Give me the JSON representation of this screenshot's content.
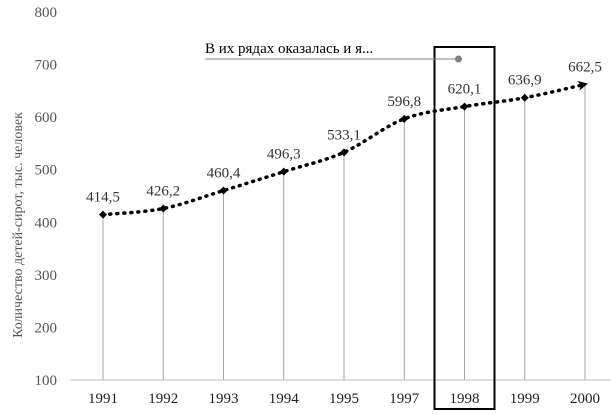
{
  "chart_data": {
    "type": "line",
    "title": "",
    "xlabel": "",
    "ylabel": "Количество детей-сирот, тыс. человек",
    "categories": [
      "1991",
      "1992",
      "1993",
      "1994",
      "1995",
      "1997",
      "1998",
      "1999",
      "2000"
    ],
    "values": [
      414.5,
      426.2,
      460.4,
      496.3,
      533.1,
      596.8,
      620.1,
      636.9,
      662.5
    ],
    "data_labels": [
      "414,5",
      "426,2",
      "460,4",
      "496,3",
      "533,1",
      "596,8",
      "620,1",
      "636,9",
      "662,5"
    ],
    "ylim": [
      100,
      800
    ],
    "yticks": [
      "100",
      "200",
      "300",
      "400",
      "500",
      "600",
      "700",
      "800"
    ],
    "grid": false,
    "drop_lines": true,
    "line_style": "dotted",
    "end_arrow": true,
    "highlight_category": "1998",
    "annotation": {
      "text": "В их рядах оказалась и я...",
      "target_category": "1998"
    },
    "colors": {
      "line": "#000000",
      "drop_line": "#a6a6a6",
      "box": "#000000",
      "annotation_line": "#808080"
    }
  }
}
